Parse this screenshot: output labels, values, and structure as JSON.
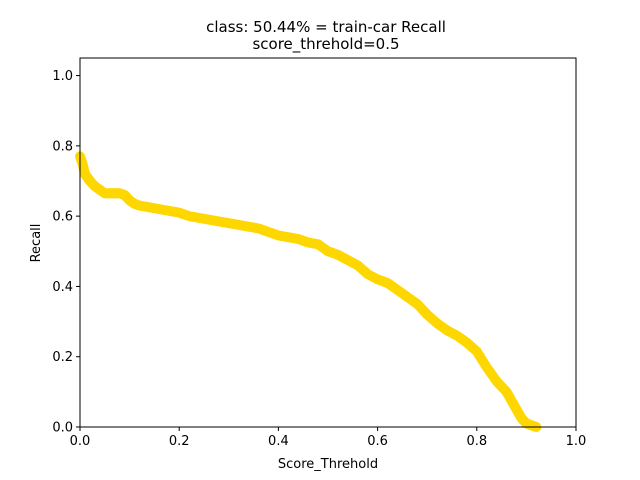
{
  "chart_data": {
    "type": "scatter",
    "title": "class: 50.44% = train-car Recall",
    "subtitle": "score_threhold=0.5",
    "xlabel": "Score_Threhold",
    "ylabel": "Recall",
    "xlim": [
      0,
      1
    ],
    "ylim": [
      0,
      1.05
    ],
    "xticks": [
      "0.0",
      "0.2",
      "0.4",
      "0.6",
      "0.8",
      "1.0"
    ],
    "yticks": [
      "0.0",
      "0.2",
      "0.4",
      "0.6",
      "0.8",
      "1.0"
    ],
    "grid": false,
    "series": [
      {
        "color": "#FFD700",
        "x": [
          0.0,
          0.005,
          0.01,
          0.015,
          0.02,
          0.03,
          0.04,
          0.05,
          0.06,
          0.07,
          0.08,
          0.09,
          0.1,
          0.11,
          0.12,
          0.14,
          0.16,
          0.18,
          0.2,
          0.22,
          0.24,
          0.26,
          0.28,
          0.3,
          0.32,
          0.34,
          0.36,
          0.38,
          0.4,
          0.42,
          0.44,
          0.46,
          0.48,
          0.5,
          0.52,
          0.54,
          0.56,
          0.58,
          0.6,
          0.62,
          0.64,
          0.66,
          0.68,
          0.7,
          0.72,
          0.74,
          0.76,
          0.78,
          0.8,
          0.82,
          0.84,
          0.86,
          0.87,
          0.88,
          0.89,
          0.9,
          0.91,
          0.92
        ],
        "y": [
          0.77,
          0.75,
          0.72,
          0.71,
          0.7,
          0.685,
          0.675,
          0.665,
          0.665,
          0.665,
          0.665,
          0.66,
          0.645,
          0.635,
          0.63,
          0.625,
          0.62,
          0.615,
          0.61,
          0.6,
          0.595,
          0.59,
          0.585,
          0.58,
          0.575,
          0.57,
          0.565,
          0.555,
          0.545,
          0.54,
          0.535,
          0.525,
          0.52,
          0.5,
          0.49,
          0.475,
          0.46,
          0.435,
          0.42,
          0.41,
          0.39,
          0.37,
          0.35,
          0.32,
          0.295,
          0.275,
          0.26,
          0.24,
          0.215,
          0.17,
          0.13,
          0.1,
          0.075,
          0.05,
          0.025,
          0.01,
          0.005,
          0.0
        ]
      }
    ]
  }
}
